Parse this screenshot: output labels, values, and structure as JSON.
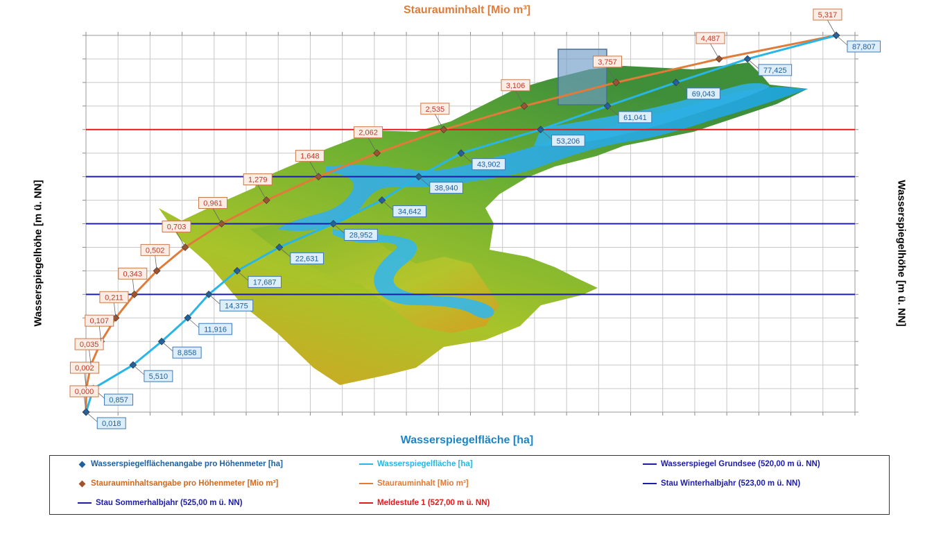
{
  "top_axis_title": "Staurauminhalt [Mio m³]",
  "bottom_axis_title": "Wasserspiegelfläche [ha]",
  "left_axis_title": "Wasserspiegelhöhe [m ü. NN]",
  "right_axis_title": "Wasserspiegelhöhe [m ü. NN]",
  "colors": {
    "area_line": "#29B6E6",
    "area_marker": "#1F5F9E",
    "area_label_text": "#1F5F9E",
    "area_label_bg": "#DCEEFA",
    "volume_line": "#E07B39",
    "volume_marker": "#A0522D",
    "volume_label_text": "#C0392B",
    "volume_label_bg": "#FBEDE4",
    "blue_levels": "#1C1CA8",
    "red_level": "#E01A1A",
    "grid": "#C8C8C8",
    "terrain_low": "#D9A020",
    "terrain_mid": "#8FBF2A",
    "terrain_high": "#3F8F3A",
    "water": "#35B7E8"
  },
  "chart_data": {
    "type": "line",
    "x_axis": "Wasserspiegelfläche [ha]",
    "x2_axis": "Staurauminhalt [Mio m³]",
    "y_axis": "Wasserspiegelhöhe [m ü. NN]",
    "levels_m": [
      0,
      1,
      2,
      3,
      4,
      5,
      6,
      7,
      8,
      9,
      10,
      11,
      12,
      13,
      14,
      15,
      16
    ],
    "series": [
      {
        "name": "Wasserspiegelflächenangabe pro Höhenmeter [ha]",
        "values": [
          0.018,
          0.857,
          5.51,
          8.858,
          11.916,
          14.375,
          17.687,
          22.631,
          28.952,
          34.642,
          38.94,
          43.902,
          53.206,
          61.041,
          69.043,
          77.425,
          87.807
        ],
        "labels": [
          "0,018",
          "0,857",
          "5,510",
          "8,858",
          "11,916",
          "14,375",
          "17,687",
          "22,631",
          "28,952",
          "34,642",
          "38,940",
          "43,902",
          "53,206",
          "61,041",
          "69,043",
          "77,425",
          "87,807"
        ]
      },
      {
        "name": "Staurauminhaltsangabe pro Höhenmeter [Mio m³]",
        "values": [
          0.0,
          0.002,
          0.035,
          0.107,
          0.211,
          0.343,
          0.502,
          0.703,
          0.961,
          1.279,
          1.648,
          2.062,
          2.535,
          3.106,
          3.757,
          4.487,
          5.317
        ],
        "labels": [
          "0,000",
          "0,002",
          "0,035",
          "0,107",
          "0,211",
          "0,343",
          "0,502",
          "0,703",
          "0,961",
          "1,279",
          "1,648",
          "2,062",
          "2,535",
          "3,106",
          "3,757",
          "4,487",
          "5,317"
        ]
      }
    ],
    "reference_lines": [
      {
        "name": "Wasserspiegel Grundsee (520,00 m ü. NN)",
        "level": 520.0,
        "color": "#1C1CA8"
      },
      {
        "name": "Stau Winterhalbjahr (523,00 m ü. NN)",
        "level": 523.0,
        "color": "#1C1CA8"
      },
      {
        "name": "Stau Sommerhalbjahr (525,00 m ü. NN)",
        "level": 525.0,
        "color": "#1C1CA8"
      },
      {
        "name": "Meldestufe 1 (527,00 m ü. NN)",
        "level": 527.0,
        "color": "#E01A1A"
      }
    ],
    "grid": true,
    "legend_position": "bottom"
  },
  "legend": [
    {
      "label": "Wasserspiegelflächenangabe pro Höhenmeter [ha]",
      "kind": "diamond",
      "color": "#1F5F9E",
      "text_color": "#1F5F9E"
    },
    {
      "label": "Wasserspiegelfläche [ha]",
      "kind": "line",
      "color": "#29B6E6",
      "text_color": "#29B6E6"
    },
    {
      "label": "Wasserspiegel Grundsee (520,00 m ü. NN)",
      "kind": "line",
      "color": "#1C1CA8",
      "text_color": "#1C1CA8"
    },
    {
      "label": "Staurauminhaltsangabe pro Höhenmeter [Mio m³]",
      "kind": "diamond",
      "color": "#A0522D",
      "text_color": "#D2691E"
    },
    {
      "label": "Staurauminhalt [Mio m³]",
      "kind": "line",
      "color": "#E07B39",
      "text_color": "#E07B39"
    },
    {
      "label": "Stau Winterhalbjahr (523,00 m ü. NN)",
      "kind": "line",
      "color": "#1C1CA8",
      "text_color": "#1C1CA8"
    },
    {
      "label": "Stau Sommerhalbjahr (525,00 m ü. NN)",
      "kind": "line",
      "color": "#1C1CA8",
      "text_color": "#1C1CA8"
    },
    {
      "label": "Meldestufe 1 (527,00 m ü. NN)",
      "kind": "line",
      "color": "#E01A1A",
      "text_color": "#E01A1A"
    }
  ]
}
